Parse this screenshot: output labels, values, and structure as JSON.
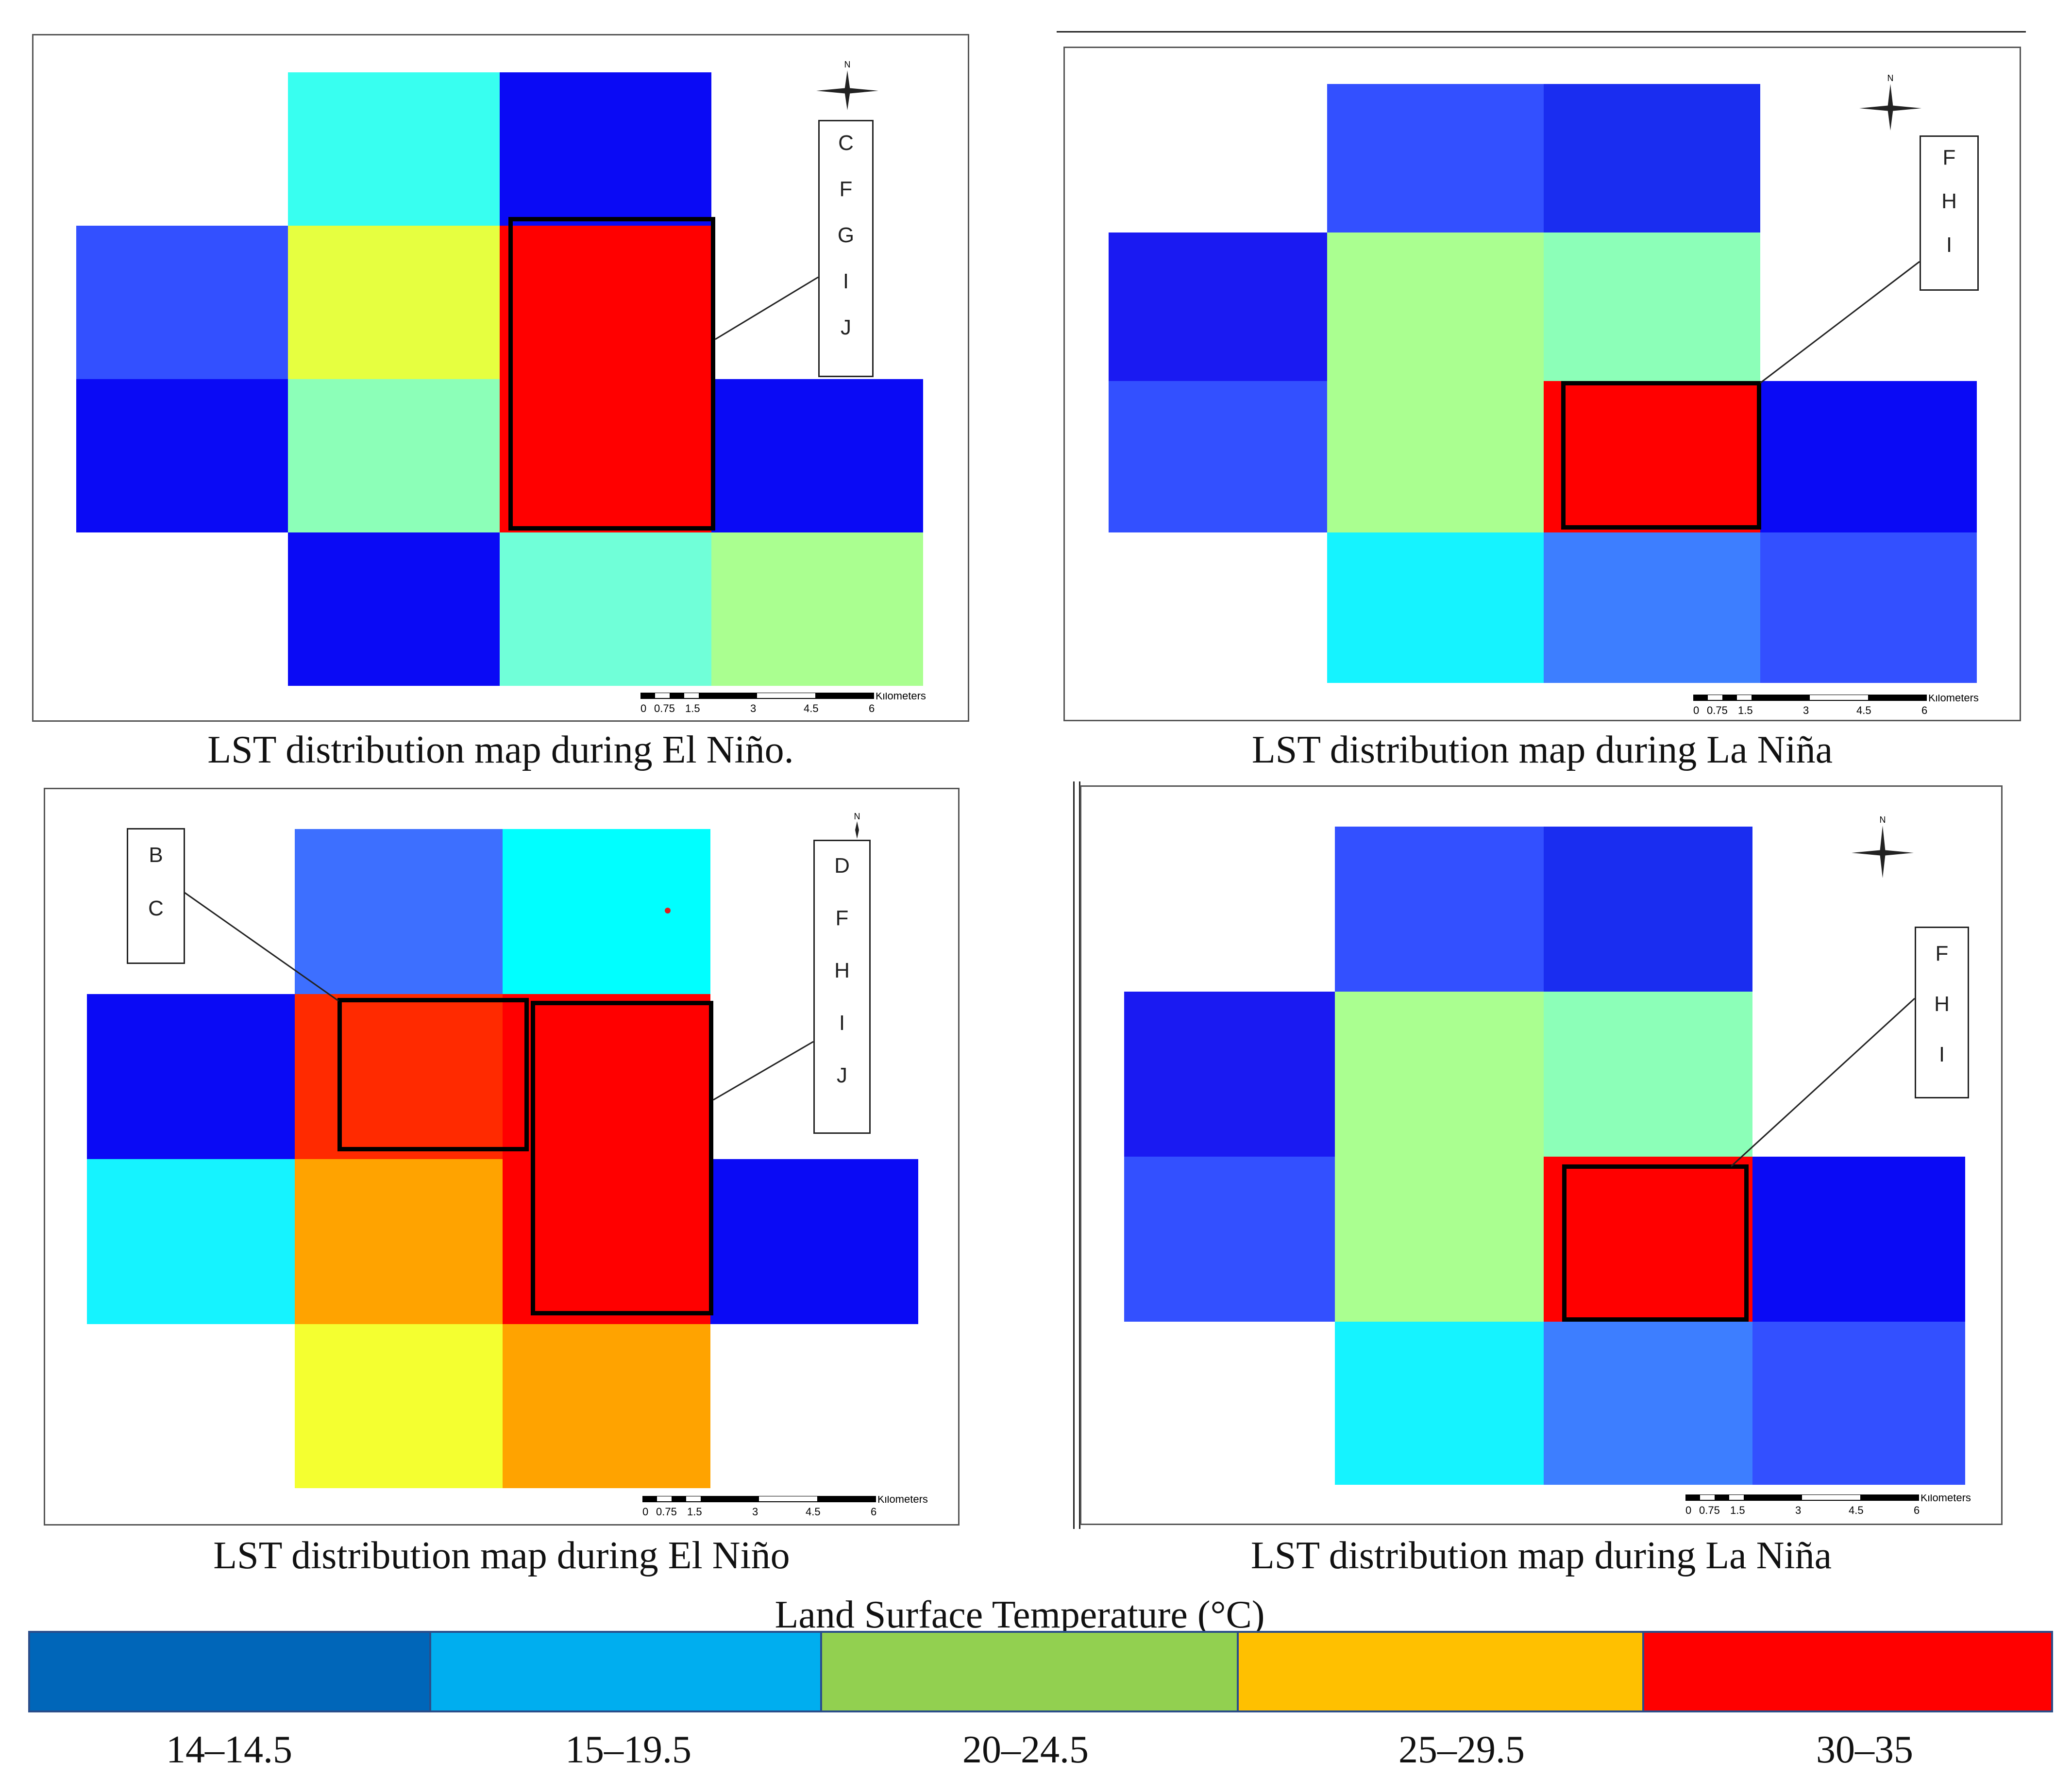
{
  "panels": [
    {
      "caption": "LST distribution map during El Niño.",
      "label_box": [
        "C",
        "F",
        "G",
        "I",
        "J"
      ],
      "compass": "north-arrow-icon",
      "north": "N"
    },
    {
      "caption": "LST distribution map during La Niña",
      "label_box": [
        "F",
        "H",
        "I"
      ],
      "compass": "north-arrow-icon",
      "north": "N"
    },
    {
      "caption": "LST distribution map during El Niño",
      "label_box": [
        "D",
        "F",
        "H",
        "I",
        "J"
      ],
      "label_box_2": [
        "B",
        "C"
      ],
      "compass": "north-arrow-icon",
      "north": "N"
    },
    {
      "caption": "LST distribution map during La Niña",
      "label_box": [
        "F",
        "H",
        "I"
      ],
      "compass": "north-arrow-icon",
      "north": "N"
    }
  ],
  "scale_bar": {
    "ticks": [
      "0",
      "0.75",
      "1.5",
      "3",
      "4.5",
      "6"
    ],
    "unit": "Kilometers"
  },
  "legend": {
    "title": "Land Surface Temperature (°C)",
    "classes": [
      {
        "label": "14–14.5",
        "color": "#0066b9"
      },
      {
        "label": "15–19.5",
        "color": "#00aeef"
      },
      {
        "label": "20–24.5",
        "color": "#92d050"
      },
      {
        "label": "25–29.5",
        "color": "#ffc000"
      },
      {
        "label": "30–35",
        "color": "#ff0000"
      }
    ]
  },
  "colors": {
    "deep_blue": "#0a0af5",
    "blue": "#3350ff",
    "mid_blue": "#3d7eff",
    "cyan": "#15f3ff",
    "aqua": "#38fff0",
    "teal": "#70ffd8",
    "mint": "#8cffb8",
    "lgreen": "#aaff90",
    "yellow": "#e6ff40",
    "yellow2": "#f4ff30",
    "orange": "#ffa300",
    "red": "#ff0000",
    "red_orange": "#ff2a00"
  }
}
